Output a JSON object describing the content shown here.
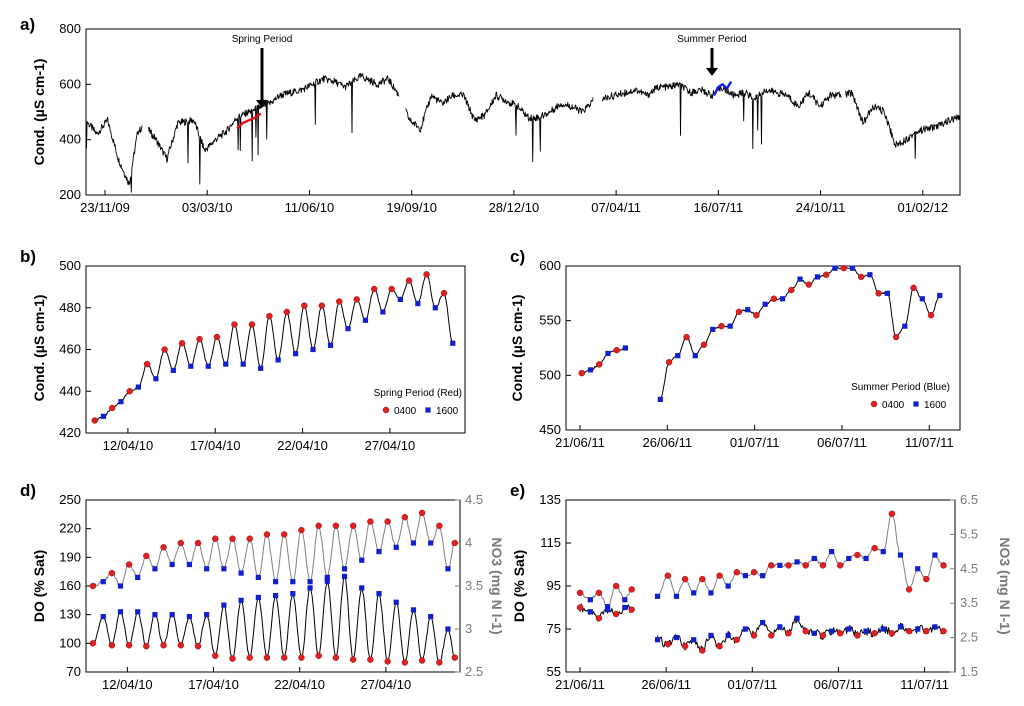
{
  "chart_data": [
    {
      "panel": "a)",
      "type": "line",
      "ylabel": "Cond. (µS cm-1)",
      "ylim": [
        200,
        800
      ],
      "yticks": [
        "200",
        "400",
        "600",
        "800"
      ],
      "xticks": [
        "23/11/09",
        "03/03/10",
        "11/06/10",
        "19/09/10",
        "28/12/10",
        "07/04/11",
        "16/07/11",
        "24/10/11",
        "01/02/12"
      ],
      "xlim_days": [
        0,
        810
      ],
      "annotations": [
        {
          "text": "Spring Period",
          "day": 151
        },
        {
          "text": "Summer Period",
          "day": 589
        }
      ],
      "series": [
        {
          "name": "Conductivity",
          "color": "#000000",
          "x": [
            0,
            10,
            20,
            30,
            40,
            48,
            55,
            65,
            75,
            85,
            100,
            110,
            120,
            130,
            140,
            151,
            160,
            170,
            180,
            190,
            200,
            210,
            220,
            230,
            240,
            255,
            260,
            270,
            280,
            290,
            300,
            310,
            320,
            330,
            340,
            350,
            360,
            370,
            380,
            390,
            400,
            410,
            420,
            430,
            440,
            450,
            460,
            470,
            480,
            490,
            500,
            510,
            520,
            530,
            540,
            550,
            560,
            570,
            580,
            589,
            600,
            610,
            620,
            630,
            640,
            650,
            660,
            670,
            680,
            690,
            700,
            710,
            720,
            730,
            740,
            750,
            760,
            770,
            780,
            790,
            800,
            810
          ],
          "y": [
            470,
            420,
            470,
            330,
            240,
            430,
            450,
            400,
            330,
            460,
            470,
            360,
            400,
            430,
            480,
            500,
            515,
            530,
            560,
            570,
            580,
            600,
            620,
            610,
            590,
            630,
            620,
            600,
            620,
            560,
            470,
            440,
            560,
            530,
            560,
            560,
            470,
            490,
            560,
            540,
            520,
            480,
            480,
            500,
            530,
            520,
            500,
            540,
            550,
            560,
            570,
            580,
            560,
            590,
            590,
            600,
            570,
            580,
            560,
            590,
            560,
            570,
            550,
            580,
            570,
            560,
            520,
            570,
            520,
            560,
            560,
            570,
            460,
            520,
            500,
            380,
            400,
            430,
            440,
            450,
            470,
            480
          ]
        },
        {
          "name": "Spring Period",
          "color": "#e01010",
          "x": [
            140,
            145,
            151,
            157,
            162
          ],
          "y": [
            440,
            460,
            470,
            480,
            495
          ]
        },
        {
          "name": "Summer Period",
          "color": "#1020e0",
          "x": [
            582,
            586,
            590,
            594,
            598
          ],
          "y": [
            560,
            590,
            600,
            585,
            610
          ]
        }
      ]
    },
    {
      "panel": "b)",
      "type": "line",
      "ylabel": "Cond. (µS cm-1)",
      "ylim": [
        420,
        500
      ],
      "yticks": [
        "420",
        "440",
        "460",
        "480",
        "500"
      ],
      "xticks": [
        "12/04/10",
        "17/04/10",
        "22/04/10",
        "27/04/10"
      ],
      "legend": {
        "title": "Spring Period (Red)",
        "items": [
          "0400",
          "1600"
        ],
        "position": "bottom-right"
      },
      "series": [
        {
          "name": "Conductivity",
          "color": "#000000"
        },
        {
          "name": "0400",
          "color": "#e02020",
          "marker": "circle",
          "x": [
            10.1,
            11.1,
            12.1,
            13.1,
            14.1,
            15.1,
            16.1,
            17.1,
            18.1,
            19.1,
            20.1,
            21.1,
            22.1,
            23.1,
            24.1,
            25.1,
            26.1,
            27.1,
            28.1,
            29.1,
            30.1
          ],
          "y": [
            426,
            432,
            440,
            453,
            460,
            463,
            465,
            466,
            472,
            472,
            476,
            478,
            481,
            481,
            483,
            484,
            489,
            489,
            493,
            496,
            487
          ]
        },
        {
          "name": "1600",
          "color": "#1020d0",
          "marker": "square",
          "x": [
            10.6,
            11.6,
            12.6,
            13.6,
            14.6,
            15.6,
            16.6,
            17.6,
            18.6,
            19.6,
            20.6,
            21.6,
            22.6,
            23.6,
            24.6,
            25.6,
            26.6,
            27.6,
            28.6,
            29.6,
            30.6
          ],
          "y": [
            428,
            435,
            442,
            446,
            450,
            452,
            452,
            453,
            453,
            451,
            455,
            458,
            460,
            462,
            470,
            474,
            478,
            484,
            482,
            480,
            463
          ]
        }
      ]
    },
    {
      "panel": "c)",
      "type": "line",
      "ylabel": "Cond. (µS cm-1)",
      "ylim": [
        450,
        600
      ],
      "yticks": [
        "450",
        "500",
        "550",
        "600"
      ],
      "xticks": [
        "21/06/11",
        "26/06/11",
        "01/07/11",
        "06/07/11",
        "11/07/11"
      ],
      "legend": {
        "title": "Summer Period (Blue)",
        "items": [
          "0400",
          "1600"
        ],
        "position": "bottom-right"
      },
      "series": [
        {
          "name": "Conductivity",
          "color": "#000000"
        },
        {
          "name": "0400",
          "color": "#e02020",
          "marker": "circle",
          "x": [
            21.1,
            22.1,
            23.1,
            26.1,
            27.1,
            28.1,
            29.1,
            30.1,
            1.1,
            2.1,
            3.1,
            4.1,
            5.1,
            6.1,
            7.1,
            8.1,
            9.1,
            10.1,
            11.1
          ],
          "y": [
            502,
            510,
            523,
            512,
            535,
            528,
            545,
            558,
            555,
            570,
            578,
            583,
            592,
            598,
            590,
            575,
            535,
            580,
            555
          ]
        },
        {
          "name": "1600",
          "color": "#1020d0",
          "marker": "square",
          "x": [
            21.6,
            22.6,
            23.6,
            25.6,
            26.6,
            27.6,
            28.6,
            29.6,
            30.6,
            1.6,
            2.6,
            3.6,
            4.6,
            5.6,
            6.6,
            7.6,
            8.6,
            9.6,
            10.6,
            11.6
          ],
          "y": [
            505,
            520,
            525,
            478,
            518,
            518,
            542,
            545,
            560,
            565,
            570,
            588,
            590,
            598,
            598,
            592,
            575,
            545,
            570,
            573
          ]
        }
      ]
    },
    {
      "panel": "d)",
      "type": "line",
      "ylabel": "DO (% Sat)",
      "ylabel2": "NO3 (mg N l-1)",
      "ylim": [
        70,
        250
      ],
      "yticks": [
        "70",
        "100",
        "130",
        "160",
        "190",
        "220",
        "250"
      ],
      "ylim2": [
        2.5,
        4.5
      ],
      "yticks2": [
        "2.5",
        "3",
        "3.5",
        "4",
        "4.5"
      ],
      "xticks": [
        "12/04/10",
        "17/04/10",
        "22/04/10",
        "27/04/10"
      ],
      "series": [
        {
          "name": "DO",
          "color": "#000000",
          "axis": "left",
          "x": [
            10,
            10.6,
            11.1,
            11.6,
            12.1,
            12.6,
            13.1,
            13.6,
            14.1,
            14.6,
            15.1,
            15.6,
            16.1,
            16.6,
            17.1,
            17.6,
            18.1,
            18.6,
            19.1,
            19.6,
            20.1,
            20.6,
            21.1,
            21.6,
            22.1,
            22.6,
            23.1,
            23.6,
            24.1,
            24.6,
            25.1,
            25.6,
            26.1,
            26.6,
            27.1,
            27.6,
            28.1,
            28.6,
            29.1,
            29.6,
            30.1,
            30.6,
            31
          ],
          "y": [
            100,
            128,
            98,
            133,
            98,
            133,
            97,
            130,
            98,
            130,
            98,
            128,
            97,
            130,
            87,
            140,
            84,
            145,
            85,
            148,
            85,
            150,
            85,
            152,
            85,
            158,
            87,
            165,
            85,
            170,
            83,
            158,
            83,
            152,
            81,
            143,
            80,
            135,
            82,
            128,
            80,
            115,
            85
          ]
        },
        {
          "name": "NO3",
          "color": "#808080",
          "axis": "right",
          "x": [
            10,
            10.6,
            11.1,
            11.6,
            12.1,
            12.6,
            13.1,
            13.6,
            14.1,
            14.6,
            15.1,
            15.6,
            16.1,
            16.6,
            17.1,
            17.6,
            18.1,
            18.6,
            19.1,
            19.6,
            20.1,
            20.6,
            21.1,
            21.6,
            22.1,
            22.6,
            23.1,
            23.6,
            24.1,
            24.6,
            25.1,
            25.6,
            26.1,
            26.6,
            27.1,
            27.6,
            28.1,
            28.6,
            29.1,
            29.6,
            30.1,
            30.6,
            31
          ],
          "y": [
            3.5,
            3.55,
            3.65,
            3.5,
            3.75,
            3.6,
            3.85,
            3.7,
            3.95,
            3.75,
            4.0,
            3.75,
            4.0,
            3.7,
            4.05,
            3.7,
            4.05,
            3.65,
            4.05,
            3.6,
            4.1,
            3.55,
            4.1,
            3.55,
            4.15,
            3.55,
            4.2,
            3.6,
            4.2,
            3.7,
            4.2,
            3.8,
            4.25,
            3.9,
            4.25,
            3.95,
            4.3,
            4.0,
            4.35,
            4.0,
            4.2,
            3.7,
            4.0
          ]
        },
        {
          "name": "0400",
          "color": "#e02020",
          "marker": "circle",
          "axis": "both"
        },
        {
          "name": "1600",
          "color": "#1020d0",
          "marker": "square",
          "axis": "both"
        }
      ]
    },
    {
      "panel": "e)",
      "type": "line",
      "ylabel": "DO (% Sat)",
      "ylabel2": "NO3 (mg N l-1)",
      "ylim": [
        55,
        135
      ],
      "yticks": [
        "55",
        "75",
        "95",
        "115",
        "135"
      ],
      "ylim2": [
        1.5,
        6.5
      ],
      "yticks2": [
        "1.5",
        "2.5",
        "3.5",
        "4.5",
        "5.5",
        "6.5"
      ],
      "xticks": [
        "21/06/11",
        "26/06/11",
        "01/07/11",
        "06/07/11",
        "11/07/11"
      ],
      "series": [
        {
          "name": "DO",
          "color": "#000000",
          "axis": "left",
          "x": [
            21,
            21.6,
            22.1,
            22.6,
            23.1,
            23.6,
            24.0,
            25.5,
            26.1,
            26.6,
            27.1,
            27.6,
            28.1,
            28.6,
            29.1,
            29.6,
            30.1,
            30.6,
            1.1,
            1.6,
            2.1,
            2.6,
            3.1,
            3.6,
            4.1,
            4.6,
            5.1,
            5.6,
            6.1,
            6.6,
            7.1,
            7.6,
            8.1,
            8.6,
            9.1,
            9.6,
            10.1,
            10.6,
            11.1,
            11.6,
            12.1
          ],
          "y": [
            85,
            83,
            80,
            84,
            82,
            85,
            84,
            70,
            68,
            71,
            67,
            70,
            65,
            72,
            67,
            72,
            70,
            75,
            72,
            78,
            72,
            76,
            73,
            80,
            74,
            73,
            72,
            74,
            73,
            75,
            72,
            74,
            73,
            75,
            73,
            76,
            74,
            75,
            74,
            76,
            74
          ]
        },
        {
          "name": "NO3",
          "color": "#808080",
          "axis": "right",
          "x": [
            21,
            21.6,
            22.1,
            22.6,
            23.1,
            23.6,
            24.0,
            25.5,
            26.1,
            26.6,
            27.1,
            27.6,
            28.1,
            28.6,
            29.1,
            29.6,
            30.1,
            30.6,
            1.1,
            1.6,
            2.1,
            2.6,
            3.1,
            3.6,
            4.1,
            4.6,
            5.1,
            5.6,
            6.1,
            6.6,
            7.1,
            7.6,
            8.1,
            8.6,
            9.1,
            9.6,
            10.1,
            10.6,
            11.1,
            11.6,
            12.1
          ],
          "y": [
            3.8,
            3.6,
            3.8,
            3.4,
            4.0,
            3.6,
            3.9,
            3.7,
            4.3,
            3.7,
            4.2,
            3.8,
            4.2,
            3.8,
            4.3,
            4.0,
            4.4,
            4.3,
            4.4,
            4.3,
            4.6,
            4.6,
            4.6,
            4.7,
            4.6,
            4.8,
            4.6,
            5.0,
            4.6,
            4.8,
            4.9,
            4.8,
            5.1,
            5.0,
            6.1,
            4.9,
            3.9,
            4.5,
            4.2,
            4.9,
            4.6
          ]
        },
        {
          "name": "0400",
          "color": "#e02020",
          "marker": "circle",
          "axis": "both"
        },
        {
          "name": "1600",
          "color": "#1020d0",
          "marker": "square",
          "axis": "both"
        }
      ]
    }
  ]
}
